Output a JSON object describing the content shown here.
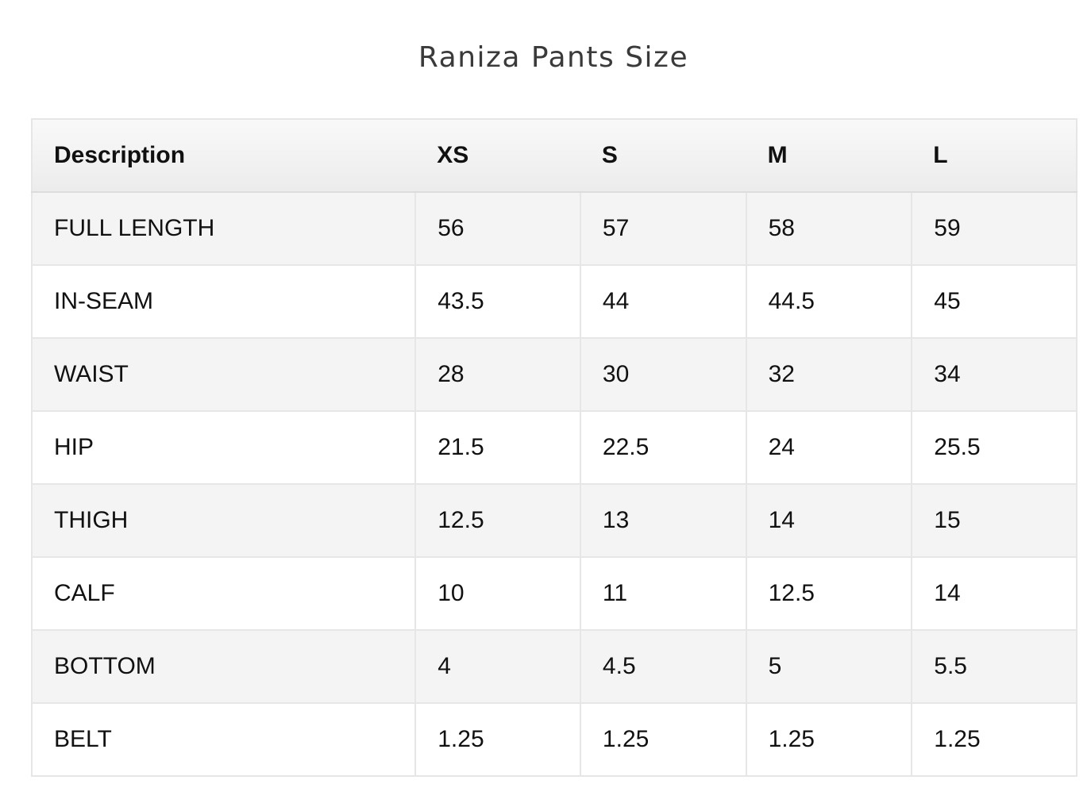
{
  "title": "Raniza Pants Size",
  "table": {
    "headers": [
      "Description",
      "XS",
      "S",
      "M",
      "L"
    ],
    "rows": [
      [
        "FULL LENGTH",
        "56",
        "57",
        "58",
        "59"
      ],
      [
        "IN-SEAM",
        "43.5",
        "44",
        "44.5",
        "45"
      ],
      [
        "WAIST",
        "28",
        "30",
        "32",
        "34"
      ],
      [
        "HIP",
        "21.5",
        "22.5",
        "24",
        "25.5"
      ],
      [
        "THIGH",
        "12.5",
        "13",
        "14",
        "15"
      ],
      [
        "CALF",
        "10",
        "11",
        "12.5",
        "14"
      ],
      [
        "BOTTOM",
        "4",
        "4.5",
        "5",
        "5.5"
      ],
      [
        "BELT",
        "1.25",
        "1.25",
        "1.25",
        "1.25"
      ]
    ]
  }
}
